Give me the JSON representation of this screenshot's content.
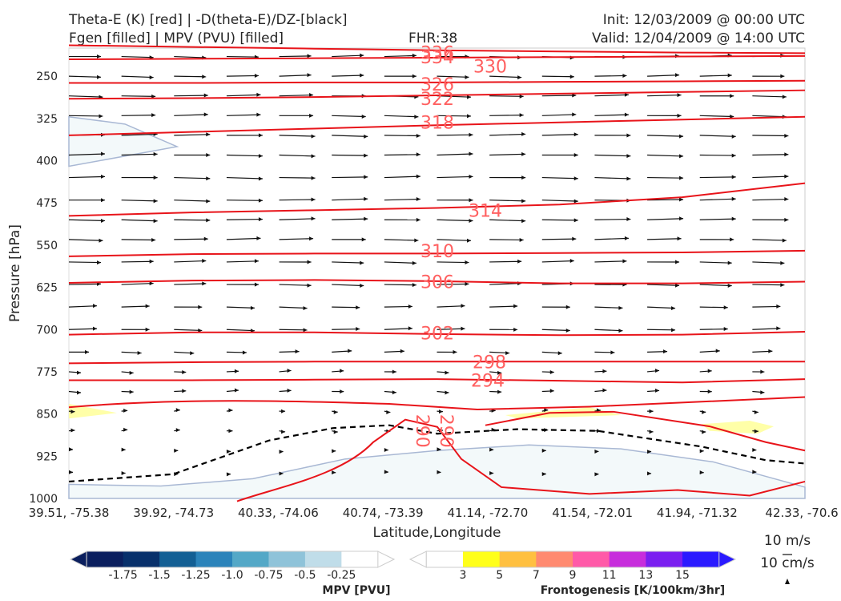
{
  "header": {
    "title_line1": "Theta-E (K) [red] | -D(theta-E)/DZ-[black]",
    "title_line2": "Fgen [filled] | MPV (PVU) [filled]",
    "fhr": "FHR:38",
    "init": "Init: 12/03/2009 @ 00:00 UTC",
    "valid": "Valid: 12/04/2009 @ 14:00 UTC"
  },
  "chart_data": {
    "type": "cross-section",
    "xlabel": "Latitude,Longitude",
    "ylabel": "Pressure [hPa]",
    "x_ticks": [
      "39.51, -75.38",
      "39.92, -74.73",
      "40.33, -74.06",
      "40.74, -73.39",
      "41.14, -72.70",
      "41.54, -72.01",
      "41.94, -71.32",
      "42.33, -70.6"
    ],
    "y_ticks": [
      250,
      325,
      400,
      475,
      550,
      625,
      700,
      775,
      850,
      925,
      1000
    ],
    "ylim": [
      1000,
      200
    ],
    "y_inverted": true,
    "theta_e_contours": [
      {
        "label": "330",
        "p": [
          195,
          198,
          201,
          204,
          206,
          208,
          209
        ]
      },
      {
        "label": "334",
        "p": [
          220,
          219,
          218,
          217,
          216,
          215,
          214
        ]
      },
      {
        "label": "326",
        "p": [
          262,
          262,
          261,
          261,
          260,
          259,
          258
        ]
      },
      {
        "label": "322",
        "p": [
          290,
          289,
          287,
          284,
          281,
          278,
          275
        ]
      },
      {
        "label": "318",
        "p": [
          355,
          349,
          343,
          337,
          332,
          327,
          322
        ]
      },
      {
        "label": "314",
        "p": [
          498,
          492,
          488,
          484,
          478,
          465,
          440
        ]
      },
      {
        "label": "310",
        "p": [
          570,
          566,
          565,
          565,
          564,
          563,
          560
        ]
      },
      {
        "label": "306",
        "p": [
          617,
          613,
          612,
          614,
          618,
          618,
          615
        ]
      },
      {
        "label": "302",
        "p": [
          709,
          705,
          705,
          708,
          710,
          709,
          704
        ]
      },
      {
        "label": "298",
        "p": [
          760,
          758,
          757,
          757,
          757,
          757,
          757
        ]
      },
      {
        "label": "294",
        "p": [
          790,
          790,
          789,
          788,
          791,
          794,
          788
        ]
      }
    ],
    "theta_e_labels": [
      "336",
      "334",
      "330",
      "326",
      "322",
      "318",
      "314",
      "310",
      "306",
      "302",
      "298",
      "294",
      "290",
      "290"
    ],
    "mpv_colorbar": {
      "label": "MPV [PVU]",
      "ticks": [
        "-1.75",
        "-1.5",
        "-1.25",
        "-1.0",
        "-0.75",
        "-0.5",
        "-0.25"
      ],
      "colors": [
        "#0b1f5e",
        "#08306b",
        "#135f94",
        "#2b83ba",
        "#54a8c7",
        "#8fc3d9",
        "#c0dde9",
        "#ffffff"
      ]
    },
    "fgen_colorbar": {
      "label": "Frontogenesis [K/100km/3hr]",
      "ticks": [
        "3",
        "5",
        "7",
        "9",
        "11",
        "13",
        "15"
      ],
      "colors": [
        "#ffffff",
        "#ffff1a",
        "#ffc040",
        "#ff8a70",
        "#ff5aa8",
        "#c72ddc",
        "#7a1ff0",
        "#2a1aff"
      ]
    },
    "wind_reference": {
      "h": "10 m/s",
      "v": "10 cm/s"
    },
    "wind_u_ms": [
      8,
      8.5,
      9,
      9,
      9,
      8.5,
      8,
      7,
      5,
      3,
      1.5,
      1
    ],
    "contour_color": "#e8141a",
    "stability_line": "black dashed"
  }
}
